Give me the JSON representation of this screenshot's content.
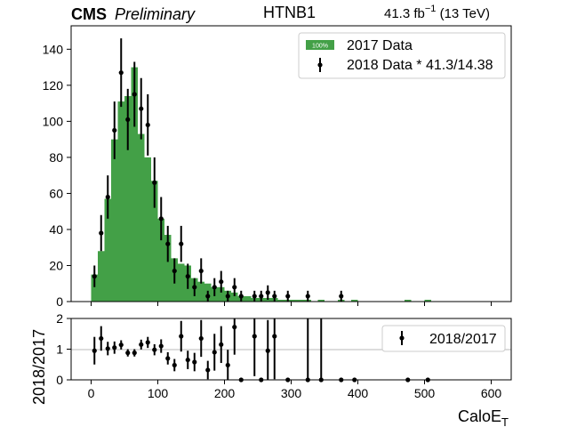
{
  "header": {
    "experiment": "CMS",
    "status": "Preliminary",
    "trigger": "HTNB1",
    "luminosity": "41.3 fb",
    "lumi_exponent": "−1",
    "energy": " (13 TeV)"
  },
  "colors": {
    "hist_fill": "#43a047",
    "points": "#000000",
    "unity_line": "#c8c8c8"
  },
  "chart_data": [
    {
      "type": "bar",
      "panel": "main",
      "xlabel": "",
      "ylabel": "",
      "xlim": [
        -30,
        630
      ],
      "ylim": [
        0,
        153
      ],
      "xticks": [
        "0",
        "100",
        "200",
        "300",
        "400",
        "500",
        "600"
      ],
      "yticks": [
        "0",
        "20",
        "40",
        "60",
        "80",
        "100",
        "120",
        "140"
      ],
      "bin_width": 10,
      "grid": false,
      "legend_position": "top-right",
      "series": [
        {
          "name": "2017 Data",
          "legend_badge": "100%",
          "type": "histogram",
          "bins": [
            [
              5,
              15
            ],
            [
              15,
              28
            ],
            [
              25,
              57
            ],
            [
              35,
              90
            ],
            [
              45,
              111
            ],
            [
              55,
              114
            ],
            [
              65,
              130
            ],
            [
              75,
              93
            ],
            [
              85,
              80
            ],
            [
              95,
              67
            ],
            [
              105,
              46
            ],
            [
              115,
              37
            ],
            [
              125,
              24
            ],
            [
              135,
              21
            ],
            [
              145,
              20
            ],
            [
              155,
              13
            ],
            [
              165,
              11
            ],
            [
              175,
              10
            ],
            [
              185,
              8
            ],
            [
              195,
              8
            ],
            [
              205,
              6
            ],
            [
              215,
              5
            ],
            [
              225,
              3
            ],
            [
              235,
              3
            ],
            [
              245,
              2
            ],
            [
              255,
              2
            ],
            [
              265,
              2
            ],
            [
              275,
              2
            ],
            [
              285,
              1
            ],
            [
              295,
              1
            ],
            [
              305,
              1
            ],
            [
              315,
              1
            ],
            [
              325,
              1
            ],
            [
              345,
              1
            ],
            [
              375,
              1
            ],
            [
              395,
              1
            ],
            [
              475,
              1
            ],
            [
              505,
              1
            ]
          ]
        },
        {
          "name": "2018 Data * 41.3/14.38",
          "type": "errorbar",
          "points": [
            {
              "x": 5,
              "y": 14,
              "err": 6
            },
            {
              "x": 15,
              "y": 38,
              "err": 10
            },
            {
              "x": 25,
              "y": 58,
              "err": 12
            },
            {
              "x": 35,
              "y": 95,
              "err": 16
            },
            {
              "x": 45,
              "y": 127,
              "err": 19
            },
            {
              "x": 55,
              "y": 101,
              "err": 17
            },
            {
              "x": 65,
              "y": 115,
              "err": 18
            },
            {
              "x": 75,
              "y": 107,
              "err": 17
            },
            {
              "x": 85,
              "y": 98,
              "err": 17
            },
            {
              "x": 95,
              "y": 66,
              "err": 14
            },
            {
              "x": 105,
              "y": 46,
              "err": 12
            },
            {
              "x": 115,
              "y": 32,
              "err": 10
            },
            {
              "x": 125,
              "y": 17,
              "err": 7
            },
            {
              "x": 135,
              "y": 32,
              "err": 10
            },
            {
              "x": 145,
              "y": 14,
              "err": 7
            },
            {
              "x": 155,
              "y": 8,
              "err": 5
            },
            {
              "x": 165,
              "y": 17,
              "err": 7
            },
            {
              "x": 175,
              "y": 3,
              "err": 3
            },
            {
              "x": 185,
              "y": 8,
              "err": 5
            },
            {
              "x": 195,
              "y": 11,
              "err": 6
            },
            {
              "x": 205,
              "y": 3,
              "err": 3
            },
            {
              "x": 215,
              "y": 8,
              "err": 5
            },
            {
              "x": 225,
              "y": 3,
              "err": 3
            },
            {
              "x": 245,
              "y": 3,
              "err": 3
            },
            {
              "x": 255,
              "y": 3,
              "err": 3
            },
            {
              "x": 265,
              "y": 5,
              "err": 4
            },
            {
              "x": 275,
              "y": 3,
              "err": 3
            },
            {
              "x": 295,
              "y": 3,
              "err": 3
            },
            {
              "x": 325,
              "y": 3,
              "err": 3
            },
            {
              "x": 375,
              "y": 3,
              "err": 3
            }
          ]
        }
      ]
    },
    {
      "type": "scatter",
      "panel": "ratio",
      "xlabel": "CaloE",
      "xlabel_subscript": "T",
      "ylabel": "2018/2017",
      "xlim": [
        -30,
        630
      ],
      "ylim": [
        0,
        2
      ],
      "xticks": [
        "0",
        "100",
        "200",
        "300",
        "400",
        "500",
        "600"
      ],
      "yticks": [
        "0",
        "1",
        "2"
      ],
      "reference_line": 1,
      "legend_position": "top-right",
      "series": [
        {
          "name": "2018/2017",
          "points": [
            {
              "x": 5,
              "y": 0.95,
              "err": 0.45
            },
            {
              "x": 15,
              "y": 1.35,
              "err": 0.4
            },
            {
              "x": 25,
              "y": 1.02,
              "err": 0.22
            },
            {
              "x": 35,
              "y": 1.05,
              "err": 0.2
            },
            {
              "x": 45,
              "y": 1.14,
              "err": 0.15
            },
            {
              "x": 55,
              "y": 0.88,
              "err": 0.12
            },
            {
              "x": 65,
              "y": 0.88,
              "err": 0.12
            },
            {
              "x": 75,
              "y": 1.15,
              "err": 0.16
            },
            {
              "x": 85,
              "y": 1.22,
              "err": 0.18
            },
            {
              "x": 95,
              "y": 0.98,
              "err": 0.18
            },
            {
              "x": 105,
              "y": 1.1,
              "err": 0.22
            },
            {
              "x": 115,
              "y": 0.7,
              "err": 0.2
            },
            {
              "x": 125,
              "y": 0.48,
              "err": 0.2
            },
            {
              "x": 135,
              "y": 1.42,
              "err": 0.5
            },
            {
              "x": 145,
              "y": 0.65,
              "err": 0.3
            },
            {
              "x": 155,
              "y": 0.58,
              "err": 0.3
            },
            {
              "x": 165,
              "y": 1.35,
              "err": 0.6
            },
            {
              "x": 175,
              "y": 0.32,
              "err": 0.3
            },
            {
              "x": 185,
              "y": 0.9,
              "err": 0.6
            },
            {
              "x": 195,
              "y": 1.15,
              "err": 0.6
            },
            {
              "x": 205,
              "y": 0.48,
              "err": 0.5
            },
            {
              "x": 215,
              "y": 1.72,
              "err": 0.9
            },
            {
              "x": 225,
              "y": 0.0,
              "err": 0.0
            },
            {
              "x": 245,
              "y": 1.42,
              "err": 1.3
            },
            {
              "x": 255,
              "y": 0.0,
              "err": 0.0
            },
            {
              "x": 265,
              "y": 0.95,
              "err": 1.0
            },
            {
              "x": 275,
              "y": 1.42,
              "err": 1.4
            },
            {
              "x": 295,
              "y": 0.0,
              "err": 0.0
            },
            {
              "x": 325,
              "y": 0.0,
              "err": 3.0
            },
            {
              "x": 345,
              "y": 0.0,
              "err": 3.0
            },
            {
              "x": 375,
              "y": 0.0,
              "err": 0.0
            },
            {
              "x": 395,
              "y": 0.0,
              "err": 0.0
            },
            {
              "x": 475,
              "y": 0.0,
              "err": 0.0
            },
            {
              "x": 505,
              "y": 0.0,
              "err": 0.0
            }
          ]
        }
      ]
    }
  ]
}
